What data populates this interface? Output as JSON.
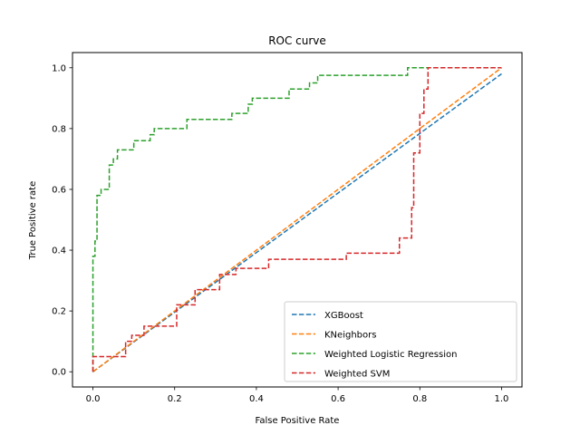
{
  "chart_data": {
    "type": "line",
    "title": "ROC curve",
    "xlabel": "False Positive Rate",
    "ylabel": "True Positive rate",
    "xlim": [
      -0.05,
      1.05
    ],
    "ylim": [
      -0.05,
      1.05
    ],
    "xticks": [
      "0.0",
      "0.2",
      "0.4",
      "0.6",
      "0.8",
      "1.0"
    ],
    "yticks": [
      "0.0",
      "0.2",
      "0.4",
      "0.6",
      "0.8",
      "1.0"
    ],
    "grid": false,
    "legend_position": "lower-right",
    "series": [
      {
        "name": "XGBoost",
        "color": "#1f77b4",
        "x": [
          0,
          1.0
        ],
        "y": [
          0,
          0.98
        ]
      },
      {
        "name": "KNeighbors",
        "color": "#ff7f0e",
        "x": [
          0,
          1.0
        ],
        "y": [
          0,
          1.0
        ]
      },
      {
        "name": "Weighted Logistic Regression",
        "color": "#2ca02c",
        "x": [
          0,
          0,
          0.005,
          0.005,
          0.01,
          0.01,
          0.02,
          0.02,
          0.04,
          0.04,
          0.05,
          0.05,
          0.06,
          0.06,
          0.07,
          0.07,
          0.1,
          0.1,
          0.14,
          0.14,
          0.15,
          0.15,
          0.23,
          0.23,
          0.34,
          0.34,
          0.38,
          0.38,
          0.39,
          0.39,
          0.48,
          0.48,
          0.53,
          0.53,
          0.55,
          0.55,
          0.77,
          0.77,
          0.81,
          0.81,
          1.0
        ],
        "y": [
          0,
          0.38,
          0.38,
          0.43,
          0.43,
          0.58,
          0.58,
          0.6,
          0.6,
          0.68,
          0.68,
          0.7,
          0.7,
          0.73,
          0.73,
          0.73,
          0.73,
          0.76,
          0.76,
          0.78,
          0.78,
          0.8,
          0.8,
          0.83,
          0.83,
          0.85,
          0.85,
          0.88,
          0.88,
          0.9,
          0.9,
          0.93,
          0.93,
          0.95,
          0.95,
          0.975,
          0.975,
          1.0,
          1.0,
          1.0,
          1.0
        ]
      },
      {
        "name": "Weighted SVM",
        "color": "#d62728",
        "x": [
          0,
          0,
          0.08,
          0.08,
          0.095,
          0.095,
          0.125,
          0.125,
          0.205,
          0.205,
          0.25,
          0.25,
          0.31,
          0.31,
          0.35,
          0.35,
          0.43,
          0.43,
          0.62,
          0.62,
          0.75,
          0.75,
          0.78,
          0.78,
          0.785,
          0.785,
          0.8,
          0.8,
          0.81,
          0.81,
          0.82,
          0.82,
          1.0
        ],
        "y": [
          0,
          0.05,
          0.05,
          0.1,
          0.1,
          0.12,
          0.12,
          0.15,
          0.15,
          0.22,
          0.22,
          0.27,
          0.27,
          0.32,
          0.32,
          0.34,
          0.34,
          0.37,
          0.37,
          0.39,
          0.39,
          0.44,
          0.44,
          0.54,
          0.54,
          0.72,
          0.72,
          0.85,
          0.85,
          0.93,
          0.93,
          1.0,
          1.0
        ]
      }
    ]
  }
}
